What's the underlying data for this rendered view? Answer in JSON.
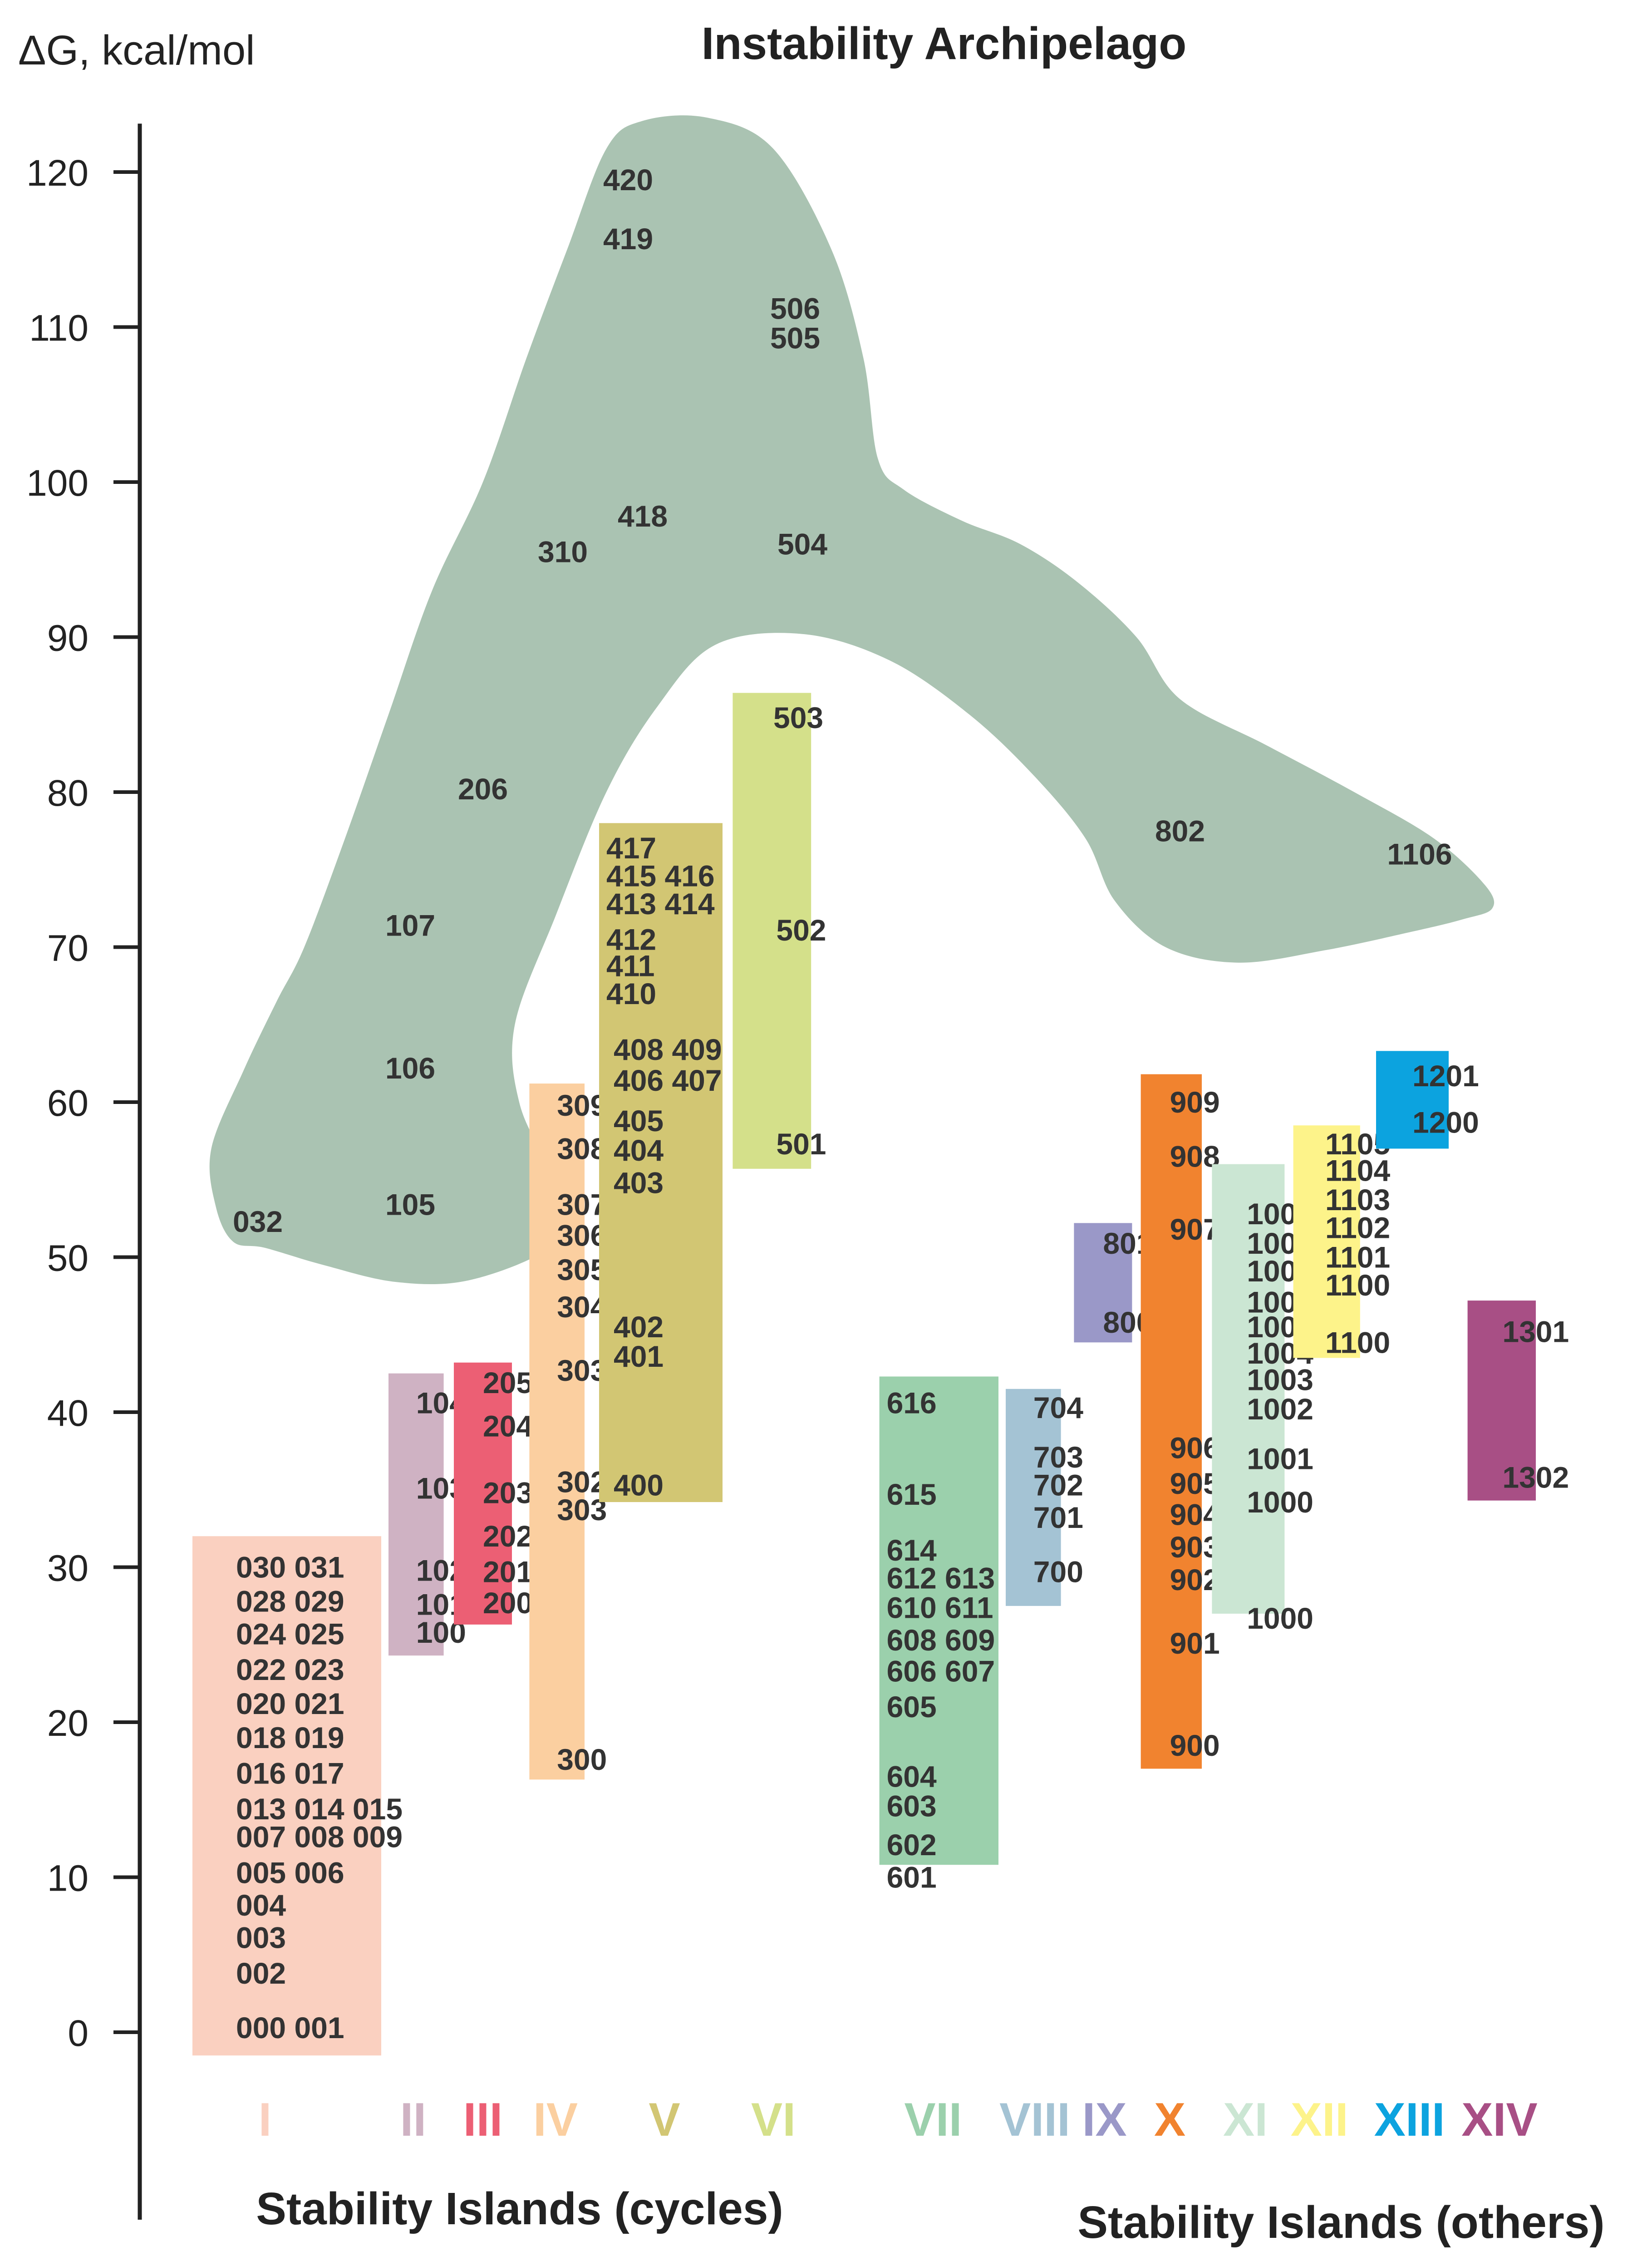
{
  "chart_data": {
    "type": "floating-bar",
    "title": "Instability Archipelago",
    "ylabel": "ΔG, kcal/mol",
    "ylim": [
      -12,
      124
    ],
    "yticks": [
      0,
      10,
      20,
      30,
      40,
      50,
      60,
      70,
      80,
      90,
      100,
      110,
      120
    ],
    "group_labels": {
      "cycles": "Stability Islands (cycles)",
      "others": "Stability Islands (others)"
    },
    "archipelago": {
      "color": "#aac3b2",
      "labels": [
        {
          "text": "420",
          "x": 3.2,
          "y": 119.5
        },
        {
          "text": "419",
          "x": 3.2,
          "y": 115.7
        },
        {
          "text": "506",
          "x": 4.35,
          "y": 111.2
        },
        {
          "text": "505",
          "x": 4.35,
          "y": 109.3
        },
        {
          "text": "418",
          "x": 3.3,
          "y": 97.8
        },
        {
          "text": "310",
          "x": 2.75,
          "y": 95.5
        },
        {
          "text": "504",
          "x": 4.4,
          "y": 96.0
        },
        {
          "text": "206",
          "x": 2.2,
          "y": 80.2
        },
        {
          "text": "107",
          "x": 1.7,
          "y": 71.4
        },
        {
          "text": "106",
          "x": 1.7,
          "y": 62.2
        },
        {
          "text": "105",
          "x": 1.7,
          "y": 53.4
        },
        {
          "text": "032",
          "x": 0.65,
          "y": 52.3
        },
        {
          "text": "802",
          "x": 7.0,
          "y": 77.5
        },
        {
          "text": "1106",
          "x": 8.65,
          "y": 76.0
        }
      ],
      "outline": [
        [
          0.48,
          51.0
        ],
        [
          0.36,
          53.3
        ],
        [
          0.33,
          57.0
        ],
        [
          0.55,
          62.0
        ],
        [
          0.78,
          66.5
        ],
        [
          0.97,
          70.0
        ],
        [
          1.25,
          77.0
        ],
        [
          1.55,
          85.0
        ],
        [
          1.85,
          93.0
        ],
        [
          2.2,
          100.0
        ],
        [
          2.5,
          108.0
        ],
        [
          2.78,
          115.0
        ],
        [
          3.05,
          121.5
        ],
        [
          3.3,
          123.3
        ],
        [
          3.75,
          123.5
        ],
        [
          4.2,
          121.5
        ],
        [
          4.6,
          115.0
        ],
        [
          4.82,
          108.0
        ],
        [
          4.92,
          101.5
        ],
        [
          5.1,
          99.5
        ],
        [
          5.5,
          97.5
        ],
        [
          5.9,
          96.0
        ],
        [
          6.3,
          93.5
        ],
        [
          6.7,
          90.0
        ],
        [
          7.0,
          86.0
        ],
        [
          7.6,
          83.0
        ],
        [
          8.2,
          80.0
        ],
        [
          8.75,
          77.0
        ],
        [
          9.1,
          74.0
        ],
        [
          9.15,
          72.5
        ],
        [
          8.95,
          71.8
        ],
        [
          8.6,
          71.0
        ],
        [
          8.0,
          69.8
        ],
        [
          7.4,
          69.0
        ],
        [
          6.9,
          70.0
        ],
        [
          6.55,
          73.0
        ],
        [
          6.35,
          77.0
        ],
        [
          6.0,
          81.0
        ],
        [
          5.55,
          85.0
        ],
        [
          5.0,
          88.5
        ],
        [
          4.4,
          90.2
        ],
        [
          3.8,
          89.5
        ],
        [
          3.4,
          85.5
        ],
        [
          3.05,
          80.0
        ],
        [
          2.7,
          72.0
        ],
        [
          2.42,
          65.0
        ],
        [
          2.45,
          60.0
        ],
        [
          2.65,
          56.0
        ],
        [
          2.85,
          53.0
        ],
        [
          2.65,
          50.5
        ],
        [
          2.1,
          48.5
        ],
        [
          1.6,
          48.4
        ],
        [
          1.1,
          49.5
        ],
        [
          0.7,
          50.6
        ]
      ]
    },
    "islands": [
      {
        "name": "I",
        "group": "cycles",
        "color": "#fad0c0",
        "x0": 0.2,
        "x1": 1.5,
        "y0": -1.5,
        "y1": 32.0,
        "label_x": 0.7,
        "labels": [
          {
            "text": "030 031",
            "x": 0.5,
            "y": 30.0
          },
          {
            "text": "028 029",
            "x": 0.5,
            "y": 27.8
          },
          {
            "text": "024 025",
            "x": 0.5,
            "y": 25.7
          },
          {
            "text": "022 023",
            "x": 0.5,
            "y": 23.4
          },
          {
            "text": "020 021",
            "x": 0.5,
            "y": 21.2
          },
          {
            "text": "018 019",
            "x": 0.5,
            "y": 19.0
          },
          {
            "text": "016 017",
            "x": 0.5,
            "y": 16.7
          },
          {
            "text": "013 014 015",
            "x": 0.5,
            "y": 14.4
          },
          {
            "text": "007 008 009",
            "x": 0.5,
            "y": 12.6
          },
          {
            "text": "005 006",
            "x": 0.5,
            "y": 10.3
          },
          {
            "text": "004",
            "x": 0.5,
            "y": 8.2
          },
          {
            "text": "003",
            "x": 0.5,
            "y": 6.1
          },
          {
            "text": "002",
            "x": 0.5,
            "y": 3.8
          },
          {
            "text": "000 001",
            "x": 0.5,
            "y": 0.3
          }
        ]
      },
      {
        "name": "II",
        "group": "cycles",
        "color": "#cfb2c3",
        "x0": 1.55,
        "x1": 1.93,
        "y0": 24.3,
        "y1": 42.5,
        "label_x": 1.72,
        "labels": [
          {
            "text": "104",
            "x": 1.74,
            "y": 40.6
          },
          {
            "text": "103",
            "x": 1.74,
            "y": 35.1
          },
          {
            "text": "102",
            "x": 1.74,
            "y": 29.8
          },
          {
            "text": "101",
            "x": 1.74,
            "y": 27.6
          },
          {
            "text": "100",
            "x": 1.74,
            "y": 25.8
          }
        ]
      },
      {
        "name": "III",
        "group": "cycles",
        "color": "#ec5f74",
        "x0": 2.0,
        "x1": 2.4,
        "y0": 26.3,
        "y1": 43.2,
        "label_x": 2.2,
        "labels": [
          {
            "text": "205",
            "x": 2.2,
            "y": 41.9
          },
          {
            "text": "204",
            "x": 2.2,
            "y": 39.1
          },
          {
            "text": "203",
            "x": 2.2,
            "y": 34.8
          },
          {
            "text": "202",
            "x": 2.2,
            "y": 32.0
          },
          {
            "text": "201",
            "x": 2.2,
            "y": 29.7
          },
          {
            "text": "200",
            "x": 2.2,
            "y": 27.7
          }
        ]
      },
      {
        "name": "IV",
        "group": "cycles",
        "color": "#fbcfa0",
        "x0": 2.52,
        "x1": 2.9,
        "y0": 16.3,
        "y1": 61.2,
        "label_x": 2.7,
        "labels": [
          {
            "text": "309",
            "x": 2.71,
            "y": 59.8
          },
          {
            "text": "308",
            "x": 2.71,
            "y": 57.0
          },
          {
            "text": "307",
            "x": 2.71,
            "y": 53.4
          },
          {
            "text": "306",
            "x": 2.71,
            "y": 51.4
          },
          {
            "text": "305",
            "x": 2.71,
            "y": 49.2
          },
          {
            "text": "304",
            "x": 2.71,
            "y": 46.8
          },
          {
            "text": "303",
            "x": 2.71,
            "y": 42.7
          },
          {
            "text": "302",
            "x": 2.71,
            "y": 35.5
          },
          {
            "text": "303",
            "x": 2.71,
            "y": 33.7
          },
          {
            "text": "300",
            "x": 2.71,
            "y": 17.6
          }
        ]
      },
      {
        "name": "V",
        "group": "cycles",
        "color": "#d2c673",
        "x0": 3.0,
        "x1": 3.85,
        "y0": 34.2,
        "y1": 78.0,
        "label_x": 3.45,
        "labels": [
          {
            "text": "417",
            "x": 3.05,
            "y": 76.4
          },
          {
            "text": "415 416",
            "x": 3.05,
            "y": 74.6
          },
          {
            "text": "413 414",
            "x": 3.05,
            "y": 72.8
          },
          {
            "text": "412",
            "x": 3.05,
            "y": 70.5
          },
          {
            "text": "411",
            "x": 3.05,
            "y": 68.8
          },
          {
            "text": "410",
            "x": 3.05,
            "y": 67.0
          },
          {
            "text": "408 409",
            "x": 3.1,
            "y": 63.4
          },
          {
            "text": "406 407",
            "x": 3.1,
            "y": 61.4
          },
          {
            "text": "405",
            "x": 3.1,
            "y": 58.8
          },
          {
            "text": "404",
            "x": 3.1,
            "y": 56.9
          },
          {
            "text": "403",
            "x": 3.1,
            "y": 54.8
          },
          {
            "text": "402",
            "x": 3.1,
            "y": 45.5
          },
          {
            "text": "401",
            "x": 3.1,
            "y": 43.6
          },
          {
            "text": "400",
            "x": 3.1,
            "y": 35.3
          }
        ]
      },
      {
        "name": "VI",
        "group": "cycles",
        "color": "#d4e08a",
        "x0": 3.92,
        "x1": 4.46,
        "y0": 55.7,
        "y1": 86.4,
        "label_x": 4.2,
        "labels": [
          {
            "text": "503",
            "x": 4.2,
            "y": 84.8
          },
          {
            "text": "502",
            "x": 4.22,
            "y": 71.1
          },
          {
            "text": "501",
            "x": 4.22,
            "y": 57.3
          }
        ]
      },
      {
        "name": "VII",
        "group": "others",
        "color": "#9bd0ac",
        "x0": 4.93,
        "x1": 5.75,
        "y0": 10.8,
        "y1": 42.3,
        "label_x": 5.3,
        "labels": [
          {
            "text": "616",
            "x": 4.98,
            "y": 40.6
          },
          {
            "text": "615",
            "x": 4.98,
            "y": 34.7
          },
          {
            "text": "614",
            "x": 4.98,
            "y": 31.1
          },
          {
            "text": "612 613",
            "x": 4.98,
            "y": 29.3
          },
          {
            "text": "610 611",
            "x": 4.98,
            "y": 27.4
          },
          {
            "text": "608 609",
            "x": 4.98,
            "y": 25.3
          },
          {
            "text": "606 607",
            "x": 4.98,
            "y": 23.3
          },
          {
            "text": "605",
            "x": 4.98,
            "y": 21.0
          },
          {
            "text": "604",
            "x": 4.98,
            "y": 16.5
          },
          {
            "text": "603",
            "x": 4.98,
            "y": 14.6
          },
          {
            "text": "602",
            "x": 4.98,
            "y": 12.1
          },
          {
            "text": "601",
            "x": 4.98,
            "y": 10.0
          }
        ]
      },
      {
        "name": "VIII",
        "group": "others",
        "color": "#a4c3d4",
        "x0": 5.8,
        "x1": 6.18,
        "y0": 27.5,
        "y1": 41.5,
        "label_x": 6.0,
        "labels": [
          {
            "text": "704",
            "x": 5.99,
            "y": 40.3
          },
          {
            "text": "703",
            "x": 5.99,
            "y": 37.1
          },
          {
            "text": "702",
            "x": 5.99,
            "y": 35.3
          },
          {
            "text": "701",
            "x": 5.99,
            "y": 33.2
          },
          {
            "text": "700",
            "x": 5.99,
            "y": 29.7
          }
        ]
      },
      {
        "name": "IX",
        "group": "others",
        "color": "#9a98c8",
        "x0": 6.27,
        "x1": 6.67,
        "y0": 44.5,
        "y1": 52.2,
        "label_x": 6.48,
        "labels": [
          {
            "text": "801",
            "x": 6.47,
            "y": 50.9
          },
          {
            "text": "800",
            "x": 6.47,
            "y": 45.8
          }
        ]
      },
      {
        "name": "X",
        "group": "others",
        "color": "#f1832f",
        "x0": 6.73,
        "x1": 7.15,
        "y0": 17.0,
        "y1": 61.8,
        "label_x": 6.93,
        "labels": [
          {
            "text": "909",
            "x": 6.93,
            "y": 60.0
          },
          {
            "text": "908",
            "x": 6.93,
            "y": 56.5
          },
          {
            "text": "907",
            "x": 6.93,
            "y": 51.8
          },
          {
            "text": "906",
            "x": 6.93,
            "y": 37.7
          },
          {
            "text": "905",
            "x": 6.93,
            "y": 35.4
          },
          {
            "text": "904",
            "x": 6.93,
            "y": 33.4
          },
          {
            "text": "903",
            "x": 6.93,
            "y": 31.3
          },
          {
            "text": "902",
            "x": 6.93,
            "y": 29.2
          },
          {
            "text": "901",
            "x": 6.93,
            "y": 25.1
          },
          {
            "text": "900",
            "x": 6.93,
            "y": 18.5
          }
        ]
      },
      {
        "name": "XI",
        "group": "others",
        "color": "#cbe6d3",
        "x0": 7.22,
        "x1": 7.72,
        "y0": 27.0,
        "y1": 56.0,
        "label_x": 7.45,
        "labels": [
          {
            "text": "1009",
            "x": 7.46,
            "y": 52.8
          },
          {
            "text": "1008",
            "x": 7.46,
            "y": 50.9
          },
          {
            "text": "1007",
            "x": 7.46,
            "y": 49.1
          },
          {
            "text": "1006",
            "x": 7.46,
            "y": 47.1
          },
          {
            "text": "1005",
            "x": 7.46,
            "y": 45.5
          },
          {
            "text": "1004",
            "x": 7.46,
            "y": 43.8
          },
          {
            "text": "1003",
            "x": 7.46,
            "y": 42.1
          },
          {
            "text": "1002",
            "x": 7.46,
            "y": 40.2
          },
          {
            "text": "1001",
            "x": 7.46,
            "y": 37.0
          },
          {
            "text": "1000",
            "x": 7.46,
            "y": 34.2
          },
          {
            "text": "1000",
            "x": 7.46,
            "y": 26.7
          }
        ]
      },
      {
        "name": "XII",
        "group": "others",
        "color": "#fdf38a",
        "x0": 7.78,
        "x1": 8.24,
        "y0": 43.5,
        "y1": 58.5,
        "label_x": 7.96,
        "labels": [
          {
            "text": "1105",
            "x": 8.0,
            "y": 57.3
          },
          {
            "text": "1104",
            "x": 8.0,
            "y": 55.6
          },
          {
            "text": "1103",
            "x": 8.0,
            "y": 53.7
          },
          {
            "text": "1102",
            "x": 8.0,
            "y": 51.9
          },
          {
            "text": "1101",
            "x": 8.0,
            "y": 50.0
          },
          {
            "text": "1100",
            "x": 8.0,
            "y": 48.2
          },
          {
            "text": "1100",
            "x": 8.0,
            "y": 44.5
          }
        ]
      },
      {
        "name": "XIII",
        "group": "others",
        "color": "#0ca3df",
        "x0": 8.35,
        "x1": 8.85,
        "y0": 57.0,
        "y1": 63.3,
        "label_x": 8.58,
        "labels": [
          {
            "text": "1201",
            "x": 8.6,
            "y": 61.7
          },
          {
            "text": "1200",
            "x": 8.6,
            "y": 58.7
          }
        ]
      },
      {
        "name": "XIV",
        "group": "others",
        "color": "#a84f85",
        "x0": 8.98,
        "x1": 9.45,
        "y0": 34.3,
        "y1": 47.2,
        "label_x": 9.2,
        "labels": [
          {
            "text": "1301",
            "x": 9.22,
            "y": 45.2
          },
          {
            "text": "1302",
            "x": 9.22,
            "y": 35.8
          }
        ]
      }
    ]
  }
}
